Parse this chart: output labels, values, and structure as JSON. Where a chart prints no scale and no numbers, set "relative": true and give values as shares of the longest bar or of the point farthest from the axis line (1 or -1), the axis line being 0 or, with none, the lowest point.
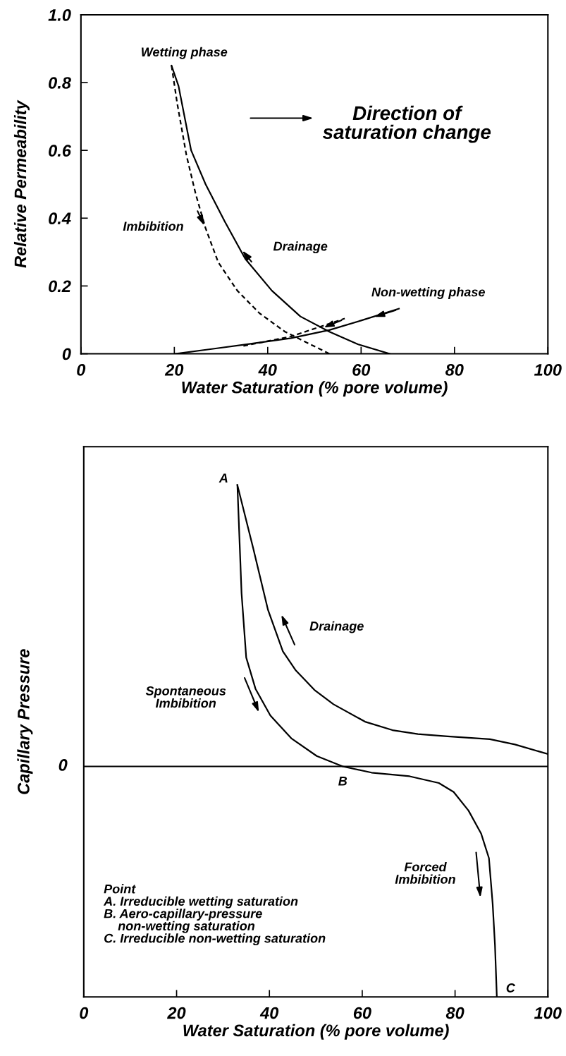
{
  "chart_data": [
    {
      "type": "line",
      "xlabel": "Water Saturation (% pore volume)",
      "ylabel": "Relative Permeability",
      "xlim": [
        0,
        100
      ],
      "xticks": [
        0,
        20,
        40,
        60,
        80,
        100
      ],
      "ylim": [
        0,
        1.0
      ],
      "yticks": [
        0,
        0.2,
        0.4,
        0.6,
        {
          "value": 1.0,
          "label": "1.0"
        },
        0.8
      ],
      "grid": false,
      "legend": false,
      "marker": "none",
      "series": [
        {
          "color": "#000000",
          "line_style": "solid",
          "x": [
            19.4,
            20.9,
            23.6,
            26.7,
            30.8,
            35.2,
            40.9,
            47.0,
            53.2,
            59.3,
            66.1
          ],
          "values": [
            0.85,
            0.79,
            0.6,
            0.5,
            0.39,
            0.28,
            0.186,
            0.11,
            0.065,
            0.028,
            0
          ]
        },
        {
          "color": "#000000",
          "line_style": "dashed",
          "x": [
            19.4,
            20.6,
            22.6,
            24.6,
            26.7,
            29.4,
            33.5,
            38.2,
            43.7,
            49.1,
            53.2
          ],
          "values": [
            0.85,
            0.74,
            0.585,
            0.47,
            0.37,
            0.27,
            0.186,
            0.12,
            0.065,
            0.028,
            0
          ]
        },
        {
          "color": "#000000",
          "line_style": "solid",
          "x": [
            20.2,
            28.0,
            35.5,
            45.0,
            53.2,
            60.0,
            68.1
          ],
          "values": [
            0,
            0.014,
            0.028,
            0.046,
            0.07,
            0.098,
            0.133
          ]
        },
        {
          "color": "#000000",
          "line_style": "dashed",
          "x": [
            34.8,
            45.0,
            56.5
          ],
          "values": [
            0.023,
            0.051,
            0.104
          ]
        }
      ],
      "annotations": [
        "Wetting phase",
        "Imbibition",
        "Drainage",
        "Non-wetting phase",
        "Direction of\nsaturation change"
      ]
    },
    {
      "type": "line",
      "xlabel": "Water Saturation (% pore volume)",
      "ylabel": "Capillary Pressure",
      "xlim": [
        0,
        100
      ],
      "xticks": [
        0,
        20,
        40,
        60,
        80,
        100
      ],
      "relative": true,
      "grid": false,
      "legend": false,
      "marker": "none",
      "series": [
        {
          "color": "#000000",
          "line_style": "solid",
          "x": [
            33.1,
            36.5,
            39.7,
            42.9,
            45.6,
            49.7,
            53.8,
            60.6,
            66.5,
            72.0,
            78.4,
            87.5,
            92.9,
            100
          ],
          "values": [
            1,
            0.776,
            0.556,
            0.409,
            0.343,
            0.272,
            0.221,
            0.159,
            0.129,
            0.115,
            0.107,
            0.097,
            0.078,
            0.044
          ]
        },
        {
          "color": "#000000",
          "line_style": "solid",
          "x": [
            33.1,
            34.0,
            35.0,
            37.0,
            40.2,
            44.7,
            50.2,
            55.8,
            62.0,
            70.2,
            76.5,
            79.7,
            82.9,
            85.6,
            87.3,
            88.1,
            88.6,
            89.0
          ],
          "values": [
            1,
            0.615,
            0.387,
            0.276,
            0.181,
            0.1,
            0.037,
            0,
            -0.022,
            -0.035,
            -0.059,
            -0.091,
            -0.157,
            -0.238,
            -0.326,
            -0.488,
            -0.635,
            -0.819
          ]
        }
      ],
      "annotations": [
        {
          "text": "A",
          "x": 33.1,
          "y": 1
        },
        {
          "text": "B",
          "x": 55.8,
          "y": 0
        },
        {
          "text": "C",
          "x": 89.0,
          "y": -0.819
        },
        "0",
        "Drainage",
        "Spontaneous\nImbibition",
        "Forced\nImbibition",
        "Point\nA. Irreducible wetting saturation\nB. Aero-capillary-pressure\n    non-wetting saturation\nC. Irreducible non-wetting saturation"
      ]
    }
  ]
}
